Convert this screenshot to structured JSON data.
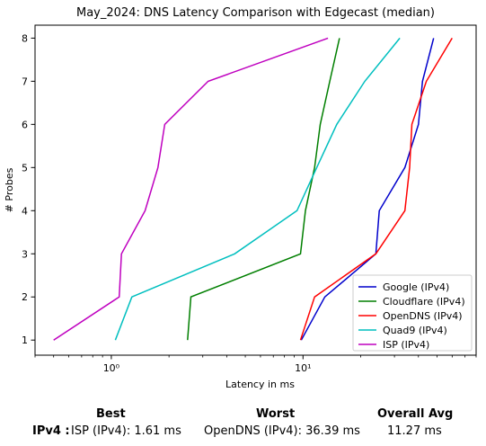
{
  "chart_data": {
    "type": "line",
    "title": "May_2024: DNS Latency Comparison with Edgecast (median)",
    "xlabel": "Latency in ms",
    "ylabel": "# Probes",
    "xscale": "log",
    "xlim": [
      0.4,
      80
    ],
    "ylim": [
      0.65,
      8.3
    ],
    "xticks": [
      {
        "value": 1,
        "label": "10⁰"
      },
      {
        "value": 10,
        "label": "10¹"
      }
    ],
    "yticks": [
      1,
      2,
      3,
      4,
      5,
      6,
      7,
      8
    ],
    "grid": false,
    "legend_position": "lower-right",
    "series": [
      {
        "name": "Google (IPv4)",
        "color": "#0000cc",
        "points": [
          [
            9.8,
            1
          ],
          [
            13,
            2
          ],
          [
            24,
            3
          ],
          [
            25,
            4
          ],
          [
            34,
            5
          ],
          [
            40,
            6
          ],
          [
            42,
            7
          ],
          [
            48,
            8
          ]
        ]
      },
      {
        "name": "Cloudflare (IPv4)",
        "color": "#007f00",
        "points": [
          [
            2.5,
            1
          ],
          [
            2.6,
            2
          ],
          [
            9.7,
            3
          ],
          [
            10.3,
            4
          ],
          [
            11.5,
            5
          ],
          [
            12.3,
            6
          ],
          [
            13.8,
            7
          ],
          [
            15.5,
            8
          ]
        ]
      },
      {
        "name": "OpenDNS (IPv4)",
        "color": "#ff0000",
        "points": [
          [
            9.7,
            1
          ],
          [
            11.5,
            2
          ],
          [
            24,
            3
          ],
          [
            34,
            4
          ],
          [
            36,
            5
          ],
          [
            37,
            6
          ],
          [
            44,
            7
          ],
          [
            60,
            8
          ]
        ]
      },
      {
        "name": "Quad9 (IPv4)",
        "color": "#00bfbf",
        "points": [
          [
            1.05,
            1
          ],
          [
            1.28,
            2
          ],
          [
            4.4,
            3
          ],
          [
            9.3,
            4
          ],
          [
            11.8,
            5
          ],
          [
            15,
            6
          ],
          [
            21,
            7
          ],
          [
            32,
            8
          ]
        ]
      },
      {
        "name": "ISP (IPv4)",
        "color": "#bf00bf",
        "points": [
          [
            0.5,
            1
          ],
          [
            1.1,
            2
          ],
          [
            1.13,
            3
          ],
          [
            1.5,
            4
          ],
          [
            1.75,
            5
          ],
          [
            1.9,
            6
          ],
          [
            3.2,
            7
          ],
          [
            13.5,
            8
          ]
        ]
      }
    ]
  },
  "summary": {
    "best_header": "Best",
    "worst_header": "Worst",
    "avg_header": "Overall Avg",
    "row_label": "IPv4 :",
    "best_value": "ISP (IPv4): 1.61 ms",
    "worst_value": "OpenDNS (IPv4): 36.39 ms",
    "avg_value": "11.27 ms"
  }
}
